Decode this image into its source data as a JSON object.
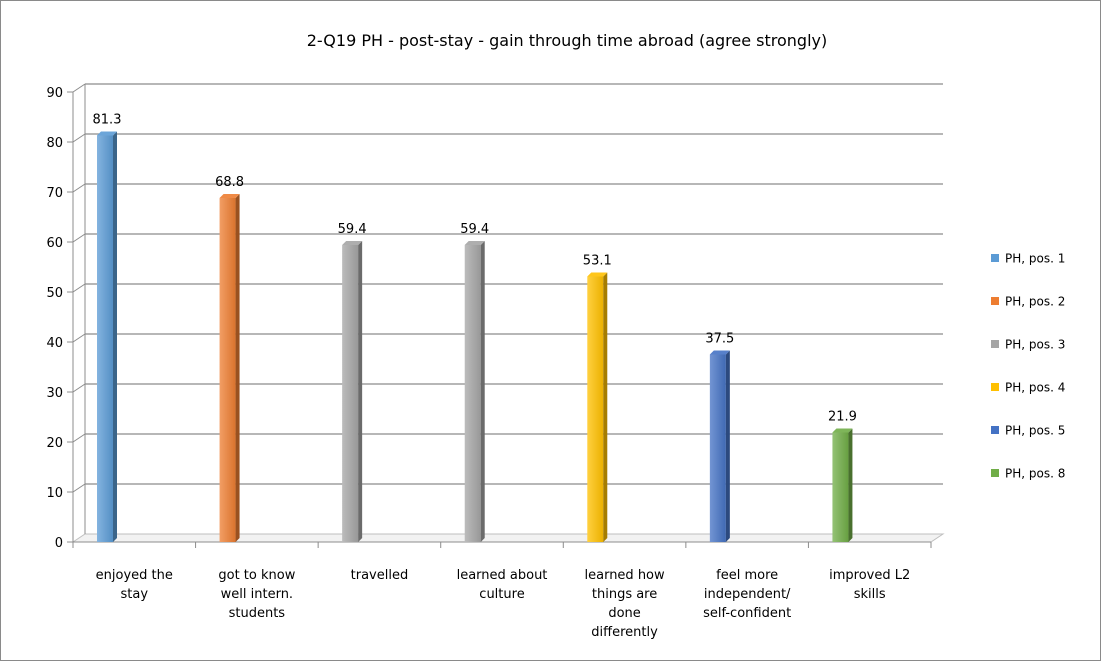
{
  "chart_data": {
    "type": "bar",
    "title": "2-Q19 PH - post-stay - gain through time abroad (agree strongly)",
    "xlabel": "",
    "ylabel": "",
    "ylim": [
      0,
      90
    ],
    "yticks": [
      0,
      10,
      20,
      30,
      40,
      50,
      60,
      70,
      80,
      90
    ],
    "grid": true,
    "legend_position": "right",
    "categories": [
      [
        "enjoyed the",
        "stay"
      ],
      [
        "got to know",
        "well intern.",
        "students"
      ],
      [
        "travelled"
      ],
      [
        "learned about",
        "culture"
      ],
      [
        "learned how",
        "things are",
        "done",
        "differently"
      ],
      [
        "feel more",
        "independent/",
        "self-confident"
      ],
      [
        "improved L2",
        "skills"
      ]
    ],
    "series": [
      {
        "name": "PH, pos. 1",
        "color": "#5b9bd5",
        "values": [
          81.3,
          null,
          null,
          null,
          null,
          null,
          null
        ]
      },
      {
        "name": "PH, pos. 2",
        "color": "#ed7d31",
        "values": [
          null,
          68.8,
          null,
          null,
          null,
          null,
          null
        ]
      },
      {
        "name": "PH, pos. 3",
        "color": "#a5a5a5",
        "values": [
          null,
          null,
          59.4,
          59.4,
          null,
          null,
          null
        ]
      },
      {
        "name": "PH, pos. 4",
        "color": "#ffc000",
        "values": [
          null,
          null,
          null,
          null,
          53.1,
          null,
          null
        ]
      },
      {
        "name": "PH, pos. 5",
        "color": "#4472c4",
        "values": [
          null,
          null,
          null,
          null,
          null,
          37.5,
          null
        ]
      },
      {
        "name": "PH, pos. 8",
        "color": "#70ad47",
        "values": [
          null,
          null,
          null,
          null,
          null,
          null,
          21.9
        ]
      }
    ],
    "data_labels": [
      "81.3",
      "68.8",
      "59.4",
      "59.4",
      "53.1",
      "37.5",
      "21.9"
    ]
  }
}
